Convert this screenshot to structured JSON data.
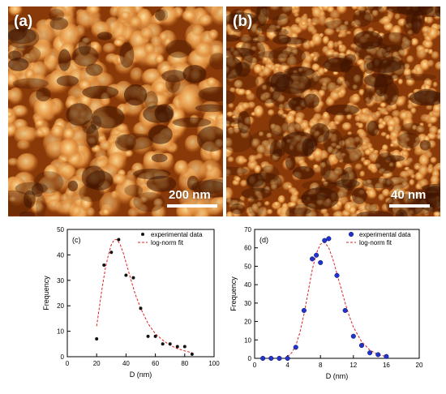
{
  "figure": {
    "panel_a": {
      "letter": "(a)",
      "scale_label": "200 nm"
    },
    "panel_b": {
      "letter": "(b)",
      "scale_label": "40 nm"
    }
  },
  "colors": {
    "afm_dark": "#3a1200",
    "afm_mid": "#c0621a",
    "afm_light": "#ffe2a0",
    "fit_line": "#e02020",
    "points_c": "#111111",
    "points_d": "#2233cc"
  },
  "chart_data": [
    {
      "type": "scatter",
      "panel_label": "(c)",
      "xlabel": "D (nm)",
      "ylabel": "Frequency",
      "xlim": [
        0,
        100
      ],
      "ylim": [
        0,
        50
      ],
      "xticks": [
        0,
        20,
        40,
        60,
        80,
        100
      ],
      "yticks": [
        0,
        10,
        20,
        30,
        40,
        50
      ],
      "legend_placement": "top-right",
      "grid": false,
      "series": [
        {
          "name": "experimental data",
          "kind": "points",
          "x": [
            20,
            25,
            30,
            35,
            40,
            45,
            50,
            55,
            60,
            65,
            70,
            75,
            80,
            85
          ],
          "y": [
            7,
            36,
            41,
            46,
            32,
            31,
            19,
            8,
            8,
            5,
            5,
            4,
            4,
            1
          ]
        },
        {
          "name": "log-norm fit",
          "kind": "fit-line",
          "x": [
            20,
            22,
            24,
            26,
            28,
            30,
            32,
            34,
            36,
            38,
            40,
            43,
            46,
            50,
            55,
            60,
            65,
            70,
            75,
            80,
            85
          ],
          "y": [
            12,
            20,
            28,
            35,
            40,
            44,
            46,
            46,
            44,
            41,
            37,
            31,
            25,
            19,
            13,
            9,
            6.5,
            4.5,
            3.2,
            2.3,
            1.6
          ]
        }
      ]
    },
    {
      "type": "scatter",
      "panel_label": "(d)",
      "xlabel": "D (nm)",
      "ylabel": "Frequency",
      "xlim": [
        0,
        20
      ],
      "ylim": [
        0,
        70
      ],
      "xticks": [
        0,
        4,
        8,
        12,
        16,
        20
      ],
      "yticks": [
        0,
        10,
        20,
        30,
        40,
        50,
        60,
        70
      ],
      "legend_placement": "top-right",
      "grid": false,
      "series": [
        {
          "name": "experimental data",
          "kind": "points",
          "x": [
            1,
            2,
            3,
            4,
            5,
            6,
            7,
            7.5,
            8,
            8.5,
            9,
            10,
            11,
            12,
            13,
            14,
            15,
            16
          ],
          "y": [
            0,
            0,
            0,
            0,
            6,
            26,
            54,
            56,
            52,
            64,
            65,
            45,
            26,
            12,
            7,
            3,
            2,
            1
          ]
        },
        {
          "name": "log-norm fit",
          "kind": "fit-line",
          "x": [
            4,
            4.5,
            5,
            5.5,
            6,
            6.5,
            7,
            7.5,
            8,
            8.5,
            9,
            9.5,
            10,
            10.5,
            11,
            11.5,
            12,
            13,
            14,
            15,
            16
          ],
          "y": [
            1,
            3,
            7,
            14,
            24,
            36,
            48,
            57,
            62,
            63,
            60,
            54,
            46,
            38,
            30,
            23,
            17,
            9,
            4.5,
            2,
            1
          ]
        }
      ]
    }
  ]
}
